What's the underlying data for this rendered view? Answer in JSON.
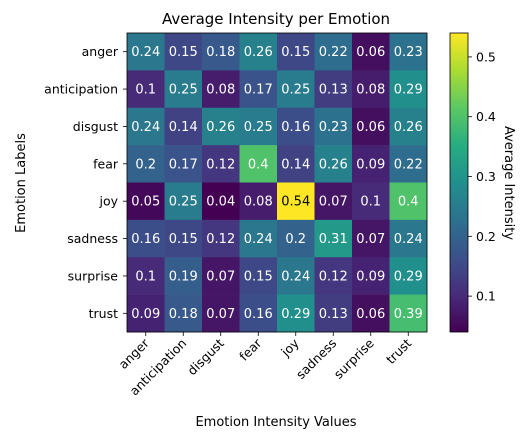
{
  "chart_data": {
    "type": "heatmap",
    "title": "Average Intensity per Emotion",
    "xlabel": "Emotion Intensity Values",
    "ylabel": "Emotion Labels",
    "colorbar_label": "Average Intensity",
    "colormap": "viridis",
    "vmin": 0.04,
    "vmax": 0.54,
    "colorbar_ticks": [
      0.1,
      0.2,
      0.3,
      0.4,
      0.5
    ],
    "x_categories": [
      "anger",
      "anticipation",
      "disgust",
      "fear",
      "joy",
      "sadness",
      "surprise",
      "trust"
    ],
    "y_categories": [
      "anger",
      "anticipation",
      "disgust",
      "fear",
      "joy",
      "sadness",
      "surprise",
      "trust"
    ],
    "values": [
      [
        0.24,
        0.15,
        0.18,
        0.26,
        0.15,
        0.22,
        0.06,
        0.23
      ],
      [
        0.1,
        0.25,
        0.08,
        0.17,
        0.25,
        0.13,
        0.08,
        0.29
      ],
      [
        0.24,
        0.14,
        0.26,
        0.25,
        0.16,
        0.23,
        0.06,
        0.26
      ],
      [
        0.2,
        0.17,
        0.12,
        0.4,
        0.14,
        0.26,
        0.09,
        0.22
      ],
      [
        0.05,
        0.25,
        0.04,
        0.08,
        0.54,
        0.07,
        0.1,
        0.4
      ],
      [
        0.16,
        0.15,
        0.12,
        0.24,
        0.2,
        0.31,
        0.07,
        0.24
      ],
      [
        0.1,
        0.19,
        0.07,
        0.15,
        0.24,
        0.12,
        0.09,
        0.29
      ],
      [
        0.09,
        0.18,
        0.07,
        0.16,
        0.29,
        0.13,
        0.06,
        0.39
      ]
    ]
  }
}
